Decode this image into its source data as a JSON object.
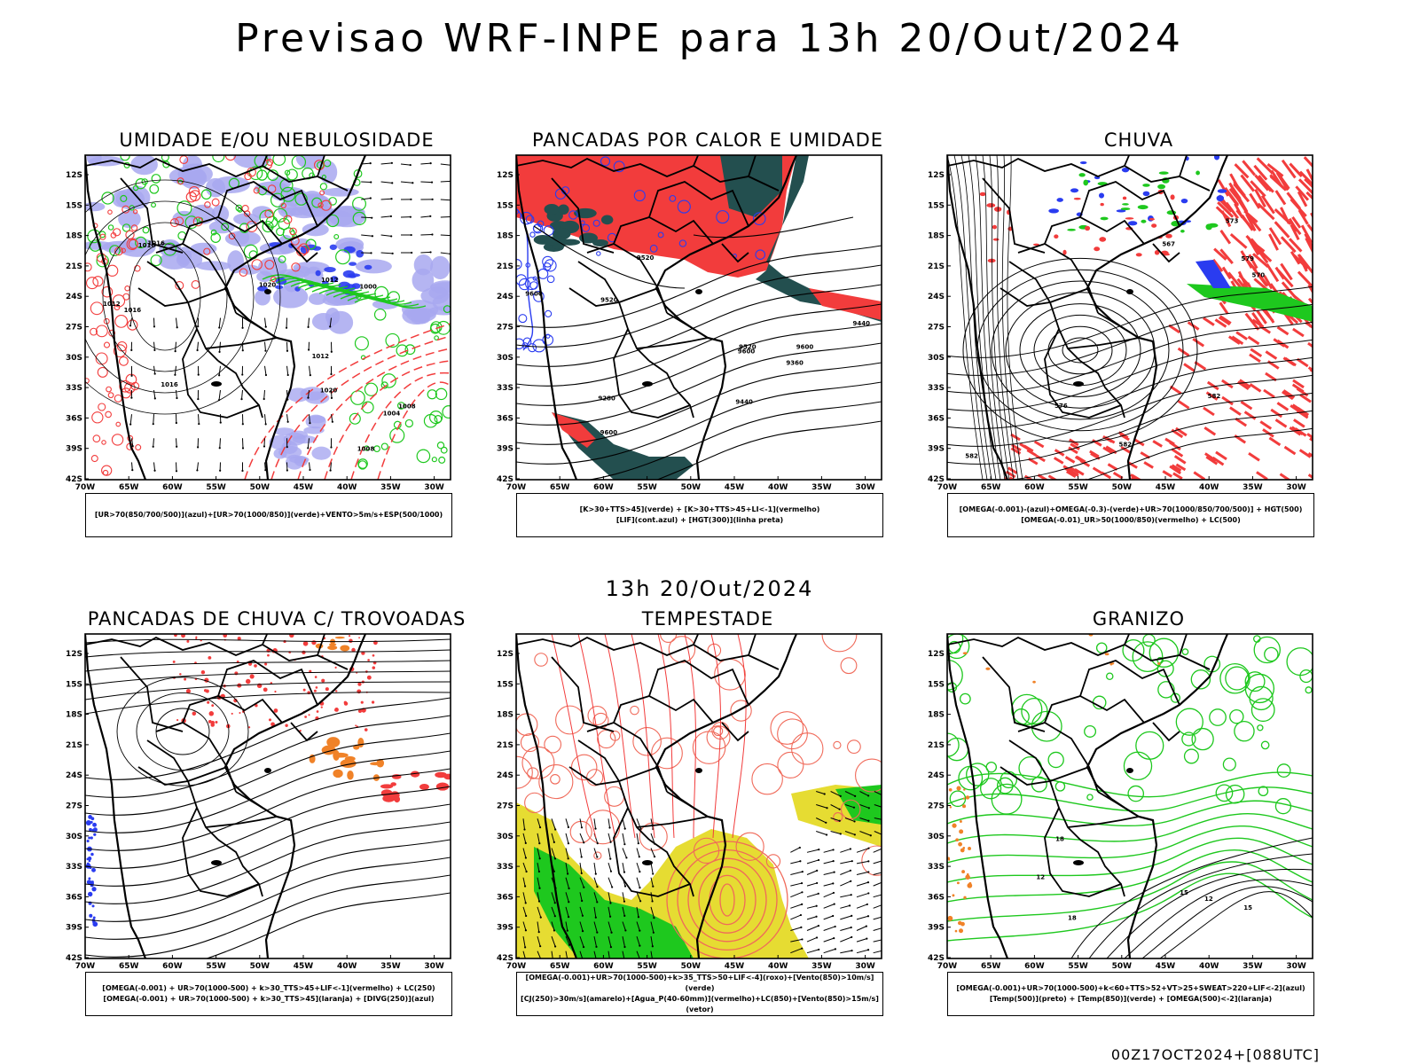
{
  "title": "Previsao WRF-INPE  para 13h 20/Out/2024",
  "subtitle": "13h 20/Out/2024",
  "stamp": "00Z17OCT2024+[088UTC]",
  "axes": {
    "lat_labels": [
      "12S",
      "15S",
      "18S",
      "21S",
      "24S",
      "27S",
      "30S",
      "33S",
      "36S",
      "39S",
      "42S"
    ],
    "lon_labels": [
      "70W",
      "65W",
      "60W",
      "55W",
      "50W",
      "45W",
      "40W",
      "35W",
      "30W"
    ]
  },
  "panels": [
    {
      "id": "umidade",
      "title": "UMIDADE E/OU NEBULOSIDADE",
      "legend": [
        "[UR>70(850/700/500)](azul)+[UR>70(1000/850)](verde)+VENTO>5m/s+ESP(500/1000)"
      ],
      "contour_labels": [
        "1012",
        "1008",
        "1008",
        "1004",
        "1000",
        "1012",
        "1016",
        "1016",
        "1020",
        "1020",
        "1016",
        "1016",
        "1012"
      ]
    },
    {
      "id": "pancadas-calor",
      "title": "PANCADAS POR CALOR E UMIDADE",
      "legend": [
        "[K>30+TTS>45](verde) + [K>30+TTS>45+LI<-1](vermelho)",
        "[LIF](cont.azul) + [HGT(300)](linha preta)"
      ],
      "contour_labels": [
        "9600",
        "9600",
        "9600",
        "9520",
        "9520",
        "9600",
        "9440",
        "9360",
        "9520",
        "9280",
        "9440"
      ]
    },
    {
      "id": "chuva",
      "title": "CHUVA",
      "legend": [
        "[OMEGA(-0.001)-(azul)+OMEGA(-0.3)-(verde)+UR>70(1000/850/700/500)] + HGT(500)",
        "[OMEGA(-0.01)_UR>50(1000/850)(vermelho) + LC(500)"
      ],
      "contour_labels": [
        "582",
        "582",
        "582",
        "576",
        "573",
        "570",
        "567",
        "579"
      ]
    },
    {
      "id": "trovoadas",
      "title": "PANCADAS DE CHUVA C/ TROVOADAS",
      "legend": [
        "[OMEGA(-0.001) + UR>70(1000-500) + k>30_TTS>45+LIF<-1](vermelho) + LC(250)",
        "[OMEGA(-0.001) + UR>70(1000-500) + k>30_TTS>45](laranja) + [DIVG(250)](azul)"
      ],
      "contour_labels": []
    },
    {
      "id": "tempestade",
      "title": "TEMPESTADE",
      "legend": [
        "[OMEGA(-0.001)+UR>70(1000-500)+k>35_TTS>50+LIF<-4](roxo)+[Vento(850)>10m/s](verde)",
        "[CJ(250)>30m/s](amarelo)+[Agua_P(40-60mm)](vermelho)+LC(850)+[Vento(850)>15m/s](vetor)"
      ],
      "contour_labels": []
    },
    {
      "id": "granizo",
      "title": "GRANIZO",
      "legend": [
        "[OMEGA(-0.001)+UR>70(1000-500)+k<60+TTS>52+VT>25+SWEAT>220+LIF<-2](azul)",
        "[Temp(500)](preto) + [Temp(850)](verde) + [OMEGA(500)<-2](laranja)"
      ],
      "contour_labels": [
        "12",
        "15",
        "18",
        "12",
        "15",
        "18"
      ]
    }
  ],
  "colors": {
    "red": "#f23c3c",
    "green": "#1ec81e",
    "blue": "#2a3cf0",
    "lavender": "#a8a8f0",
    "teal": "#234f4f",
    "orange": "#f08228",
    "yellow": "#e6dc32",
    "lightred": "#f06a5a"
  }
}
